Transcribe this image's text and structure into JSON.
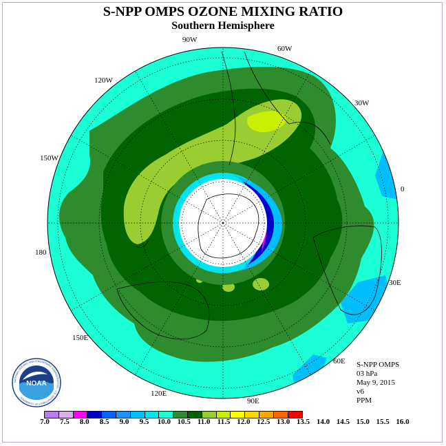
{
  "title": "S-NPP OMPS OZONE MIXING RATIO",
  "subtitle": "Southern Hemisphere",
  "longitude_labels": [
    "90W",
    "60W",
    "120W",
    "30W",
    "150W",
    "0",
    "180",
    "30E",
    "150E",
    "60E",
    "120E",
    "90E"
  ],
  "info": {
    "instrument": "S-NPP OMPS",
    "level": "03 hPa",
    "date": "May 9, 2015",
    "version": "v6",
    "units": "PPM"
  },
  "logo": {
    "text": "NOAA",
    "ring_text": "NATIONAL OCEANIC AND ATMOSPHERIC ADMINISTRATION · U.S. DEPARTMENT OF COMMERCE"
  },
  "colorbar": {
    "ticks": [
      "7.0",
      "7.5",
      "8.0",
      "8.5",
      "9.0",
      "9.5",
      "10.0",
      "10.5",
      "11.0",
      "11.5",
      "12.0",
      "12.5",
      "13.0",
      "13.5",
      "14.0",
      "14.5",
      "15.0",
      "15.5",
      "16.0"
    ],
    "colors": [
      "#b87df0",
      "#d8b0f0",
      "#ff00ff",
      "#0000cc",
      "#0066ff",
      "#1e90ff",
      "#00bfff",
      "#00e5ee",
      "#1affd6",
      "#2e8b2e",
      "#006400",
      "#9acd32",
      "#c8f000",
      "#ffff00",
      "#ffd700",
      "#ffa500",
      "#ff6600",
      "#ff0000",
      "#8b4513"
    ]
  },
  "map_colors": {
    "background": "#1affd6",
    "green": "#2e8b2e",
    "dark_green": "#006400",
    "yellow_green": "#9acd32",
    "lime": "#c8f000",
    "cyan": "#00e5ee",
    "light_blue": "#00bfff",
    "blue": "#0000cc",
    "magenta": "#ff00ff",
    "pole": "#ffffff"
  }
}
